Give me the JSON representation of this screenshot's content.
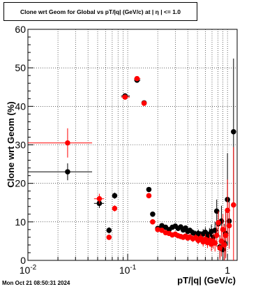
{
  "timestamp": "Mon Oct 21 08:50:31 2024",
  "chart_data": {
    "type": "scatter",
    "title": "Clone wrt Geom for Global vs pT/|q| (GeV/c) at |  η  | <= 1.0",
    "xlabel": "pT/|q| (GeV/c)",
    "ylabel": "Clone wrt Geom (%)",
    "xscale": "log",
    "xlim": [
      0.01,
      1.25
    ],
    "ylim": [
      0,
      60
    ],
    "grid": true,
    "x_tick_labels": [
      "10^-2",
      "10^-1",
      "1"
    ],
    "y_tick_labels": [
      "0",
      "10",
      "20",
      "30",
      "40",
      "50",
      "60"
    ],
    "series": [
      {
        "color": "#000000",
        "points": [
          {
            "x": 0.025,
            "y": 23.0,
            "xlo": 0.01,
            "xhi": 0.044,
            "yerr": 2.2
          },
          {
            "x": 0.052,
            "y": 14.8,
            "xlo": 0.046,
            "xhi": 0.058,
            "yerr": 1.2
          },
          {
            "x": 0.065,
            "y": 7.8,
            "yerr": 0.8
          },
          {
            "x": 0.074,
            "y": 16.8,
            "yerr": 0.8
          },
          {
            "x": 0.094,
            "y": 42.7,
            "xlo": 0.086,
            "xhi": 0.105,
            "yerr": 0.6
          },
          {
            "x": 0.124,
            "y": 46.8,
            "xlo": 0.116,
            "xhi": 0.134,
            "yerr": 0.5
          },
          {
            "x": 0.146,
            "y": 40.9,
            "yerr": 0.5
          },
          {
            "x": 0.163,
            "y": 18.4,
            "yerr": 0.5
          },
          {
            "x": 0.178,
            "y": 12.0,
            "yerr": 0.5
          },
          {
            "x": 0.2,
            "y": 8.3,
            "yerr": 0.4
          },
          {
            "x": 0.22,
            "y": 9.0,
            "yerr": 0.4
          },
          {
            "x": 0.24,
            "y": 8.6,
            "yerr": 0.4
          },
          {
            "x": 0.26,
            "y": 8.0,
            "yerr": 0.4
          },
          {
            "x": 0.28,
            "y": 8.6,
            "yerr": 0.4
          },
          {
            "x": 0.3,
            "y": 8.9,
            "yerr": 0.5
          },
          {
            "x": 0.32,
            "y": 8.3,
            "yerr": 0.5
          },
          {
            "x": 0.34,
            "y": 8.7,
            "yerr": 0.5
          },
          {
            "x": 0.36,
            "y": 7.9,
            "yerr": 0.6
          },
          {
            "x": 0.38,
            "y": 8.4,
            "yerr": 0.6
          },
          {
            "x": 0.4,
            "y": 7.5,
            "yerr": 0.6
          },
          {
            "x": 0.42,
            "y": 7.8,
            "yerr": 0.7
          },
          {
            "x": 0.45,
            "y": 7.2,
            "yerr": 0.8
          },
          {
            "x": 0.48,
            "y": 6.8,
            "yerr": 0.9
          },
          {
            "x": 0.51,
            "y": 7.0,
            "yerr": 1.0
          },
          {
            "x": 0.54,
            "y": 6.5,
            "yerr": 1.1
          },
          {
            "x": 0.57,
            "y": 6.9,
            "yerr": 1.2
          },
          {
            "x": 0.6,
            "y": 7.3,
            "yerr": 1.3
          },
          {
            "x": 0.63,
            "y": 6.2,
            "yerr": 1.4
          },
          {
            "x": 0.66,
            "y": 6.8,
            "yerr": 1.6
          },
          {
            "x": 0.69,
            "y": 7.5,
            "yerr": 1.8
          },
          {
            "x": 0.72,
            "y": 6.0,
            "yerr": 2.0
          },
          {
            "x": 0.75,
            "y": 7.8,
            "yerr": 2.2
          },
          {
            "x": 0.78,
            "y": 12.8,
            "yerr": 3.0
          },
          {
            "x": 0.81,
            "y": 9.5,
            "yerr": 3.0
          },
          {
            "x": 0.84,
            "y": 3.5,
            "yerr": 3.0
          },
          {
            "x": 0.87,
            "y": 10.2,
            "yerr": 4.0
          },
          {
            "x": 0.9,
            "y": 2.8,
            "yerr": 4.0
          },
          {
            "x": 0.93,
            "y": 4.5,
            "yerr": 5.0
          },
          {
            "x": 0.96,
            "y": 7.0,
            "yerr": 6.0
          },
          {
            "x": 1.0,
            "y": 15.8,
            "yerr": 12.0
          },
          {
            "x": 1.04,
            "y": 10.2,
            "yerr": 6.0
          },
          {
            "x": 1.15,
            "y": 33.4,
            "yerr": 19.0
          }
        ]
      },
      {
        "color": "#ff0000",
        "points": [
          {
            "x": 0.025,
            "y": 30.5,
            "xlo": 0.01,
            "xhi": 0.044,
            "yerr": 3.8
          },
          {
            "x": 0.052,
            "y": 16.0,
            "xlo": 0.046,
            "xhi": 0.058,
            "yerr": 1.3
          },
          {
            "x": 0.065,
            "y": 6.0,
            "yerr": 0.7
          },
          {
            "x": 0.074,
            "y": 13.5,
            "yerr": 0.8
          },
          {
            "x": 0.094,
            "y": 42.4,
            "xlo": 0.086,
            "xhi": 0.105,
            "yerr": 0.6
          },
          {
            "x": 0.124,
            "y": 47.2,
            "xlo": 0.116,
            "xhi": 0.134,
            "yerr": 0.5
          },
          {
            "x": 0.146,
            "y": 40.8,
            "yerr": 0.5
          },
          {
            "x": 0.163,
            "y": 16.8,
            "yerr": 0.5
          },
          {
            "x": 0.178,
            "y": 10.0,
            "yerr": 0.5
          },
          {
            "x": 0.2,
            "y": 8.0,
            "yerr": 0.4
          },
          {
            "x": 0.22,
            "y": 7.8,
            "yerr": 0.4
          },
          {
            "x": 0.24,
            "y": 7.2,
            "yerr": 0.4
          },
          {
            "x": 0.26,
            "y": 7.0,
            "yerr": 0.4
          },
          {
            "x": 0.28,
            "y": 6.6,
            "yerr": 0.4
          },
          {
            "x": 0.3,
            "y": 6.8,
            "yerr": 0.5
          },
          {
            "x": 0.32,
            "y": 6.4,
            "yerr": 0.5
          },
          {
            "x": 0.34,
            "y": 6.2,
            "yerr": 0.5
          },
          {
            "x": 0.36,
            "y": 6.0,
            "yerr": 0.6
          },
          {
            "x": 0.38,
            "y": 6.3,
            "yerr": 0.6
          },
          {
            "x": 0.4,
            "y": 5.8,
            "yerr": 0.6
          },
          {
            "x": 0.42,
            "y": 6.1,
            "yerr": 0.7
          },
          {
            "x": 0.45,
            "y": 5.6,
            "yerr": 0.8
          },
          {
            "x": 0.48,
            "y": 5.9,
            "yerr": 0.9
          },
          {
            "x": 0.51,
            "y": 5.2,
            "yerr": 1.0
          },
          {
            "x": 0.54,
            "y": 5.8,
            "yerr": 1.1
          },
          {
            "x": 0.57,
            "y": 4.8,
            "yerr": 1.2
          },
          {
            "x": 0.6,
            "y": 5.5,
            "yerr": 1.3
          },
          {
            "x": 0.63,
            "y": 4.6,
            "yerr": 1.4
          },
          {
            "x": 0.66,
            "y": 5.2,
            "yerr": 1.6
          },
          {
            "x": 0.69,
            "y": 4.2,
            "yerr": 1.8
          },
          {
            "x": 0.72,
            "y": 5.0,
            "yerr": 2.0
          },
          {
            "x": 0.75,
            "y": 4.5,
            "yerr": 2.2
          },
          {
            "x": 0.78,
            "y": 6.5,
            "yerr": 3.0
          },
          {
            "x": 0.81,
            "y": 9.8,
            "yerr": 3.0
          },
          {
            "x": 0.84,
            "y": 3.2,
            "yerr": 3.0
          },
          {
            "x": 0.87,
            "y": 5.0,
            "yerr": 4.0
          },
          {
            "x": 0.9,
            "y": 8.0,
            "yerr": 4.0
          },
          {
            "x": 0.93,
            "y": 4.0,
            "yerr": 5.0
          },
          {
            "x": 0.96,
            "y": 6.5,
            "yerr": 6.0
          },
          {
            "x": 1.0,
            "y": 13.0,
            "yerr": 8.0
          },
          {
            "x": 1.04,
            "y": 9.0,
            "yerr": 6.0
          },
          {
            "x": 1.15,
            "y": 14.4,
            "yerr": 15.0
          }
        ]
      }
    ]
  }
}
